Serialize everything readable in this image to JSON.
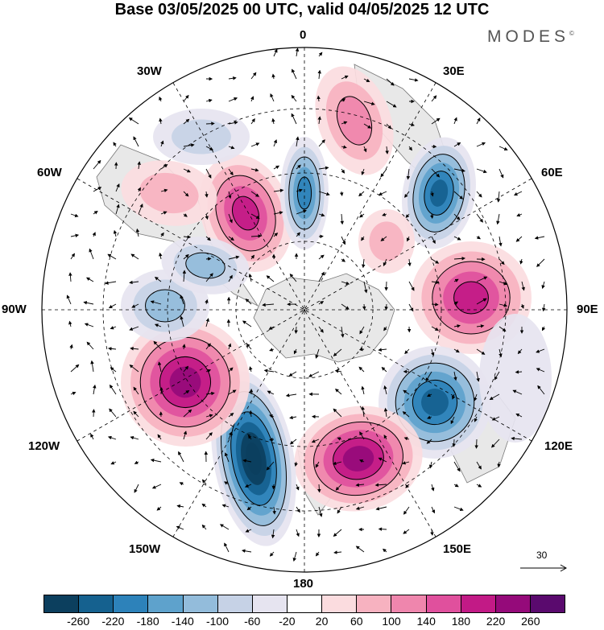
{
  "title": "Base 03/05/2025 00 UTC, valid 04/05/2025 12 UTC",
  "brand": "MODES",
  "brand_mark": "©",
  "lon_labels": {
    "n": "0",
    "s": "180",
    "e": "90E",
    "w": "90W",
    "ne30": "30E",
    "nw30": "30W",
    "ne60": "60E",
    "nw60": "60W",
    "se120": "120E",
    "sw120": "120W",
    "se150": "150E",
    "sw150": "150W"
  },
  "vector_reference": "30",
  "colorbar": {
    "colors": [
      "#0c3f5e",
      "#15618f",
      "#2d82ba",
      "#5ea2cc",
      "#93bcdb",
      "#c6d2e6",
      "#e6e4f0",
      "#ffffff",
      "#fbdcdf",
      "#f7b2c0",
      "#ef86ad",
      "#e0509d",
      "#c21a86",
      "#950a7a",
      "#5a0a6e"
    ],
    "labels": [
      "-260",
      "-220",
      "-180",
      "-140",
      "-100",
      "-60",
      "-20",
      "20",
      "60",
      "100",
      "140",
      "180",
      "220",
      "260"
    ]
  },
  "map_colors": {
    "land": "#e6e6e6",
    "graticule": "#000000"
  }
}
